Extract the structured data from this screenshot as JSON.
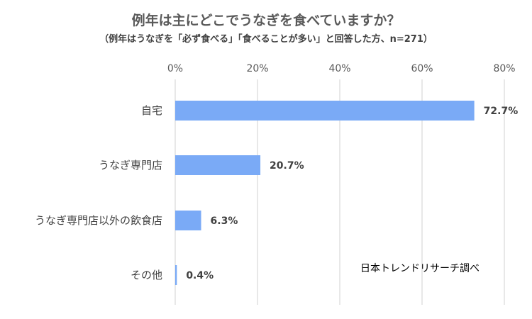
{
  "chart_data": {
    "type": "bar",
    "orientation": "horizontal",
    "title": "例年は主にどこでうなぎを食べていますか？",
    "subtitle": "（例年はうなぎを「必ず食べる」「食べることが多い」と回答した方、n=271）",
    "categories": [
      "自宅",
      "うなぎ専門店",
      "うなぎ専門店以外の飲食店",
      "その他"
    ],
    "values": [
      72.7,
      20.7,
      6.3,
      0.4
    ],
    "data_labels": [
      "72.7%",
      "20.7%",
      "6.3%",
      "0.4%"
    ],
    "xlim": [
      0,
      80
    ],
    "xticks": [
      0,
      20,
      40,
      60,
      80
    ],
    "xtick_labels": [
      "0%",
      "20%",
      "40%",
      "60%",
      "80%"
    ],
    "x_axis_position": "top",
    "grid": true,
    "bar_color": "#7aaaf6",
    "grid_color": "#d9d9d9",
    "source_note": "日本トレンドリサーチ調べ"
  }
}
